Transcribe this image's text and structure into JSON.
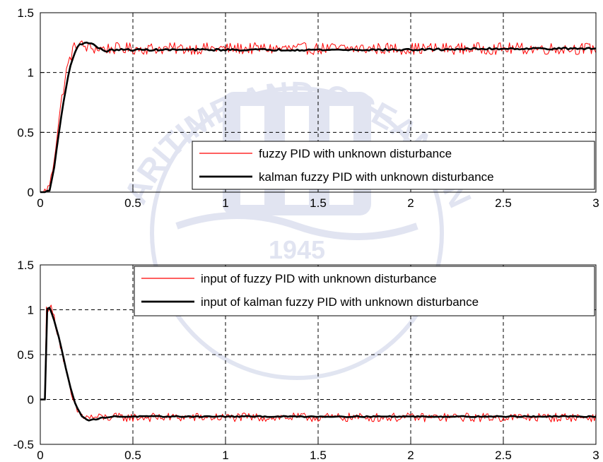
{
  "colors": {
    "fuzzy": "#ff0000",
    "kalman": "#000000",
    "grid": "#000000",
    "watermark": "#c9cfe6"
  },
  "watermark": {
    "arc_text": "KOREA MARITIME AND OCEAN UNIVERSITY",
    "year": "1945"
  },
  "chart_data": [
    {
      "type": "line",
      "title": "",
      "xlabel": "",
      "ylabel": "",
      "xlim": [
        0,
        3
      ],
      "ylim": [
        0,
        1.5
      ],
      "xticks": [
        0,
        0.5,
        1,
        1.5,
        2,
        2.5,
        3
      ],
      "yticks": [
        0,
        0.5,
        1,
        1.5
      ],
      "xtick_labels": [
        "0",
        "0.5",
        "1",
        "1.5",
        "2",
        "2.5",
        "3"
      ],
      "ytick_labels": [
        "0",
        "0.5",
        "1",
        "1.5"
      ],
      "grid": true,
      "legend_position": "bottom-right",
      "series": [
        {
          "name": "fuzzy PID with unknown disturbance",
          "color": "#ff0000",
          "style": "noisy",
          "x": [
            0,
            0.02,
            0.04,
            0.06,
            0.08,
            0.1,
            0.12,
            0.14,
            0.16,
            0.18,
            0.2,
            0.22,
            0.25,
            0.3,
            0.4,
            0.6,
            1.0,
            1.5,
            2.0,
            2.5,
            3.0
          ],
          "values": [
            0,
            0,
            0.02,
            0.12,
            0.35,
            0.6,
            0.82,
            1.0,
            1.12,
            1.2,
            1.24,
            1.23,
            1.21,
            1.2,
            1.2,
            1.2,
            1.2,
            1.2,
            1.2,
            1.2,
            1.2
          ],
          "noise_amplitude": 0.05
        },
        {
          "name": "kalman fuzzy PID with unknown disturbance",
          "color": "#000000",
          "style": "smooth",
          "x": [
            0,
            0.03,
            0.05,
            0.07,
            0.09,
            0.11,
            0.13,
            0.15,
            0.17,
            0.19,
            0.21,
            0.24,
            0.27,
            0.3,
            0.33,
            0.36,
            0.4,
            0.5,
            1.0,
            1.5,
            2.0,
            2.5,
            3.0
          ],
          "values": [
            0,
            0,
            0.02,
            0.15,
            0.38,
            0.6,
            0.8,
            0.97,
            1.1,
            1.18,
            1.23,
            1.25,
            1.25,
            1.22,
            1.19,
            1.18,
            1.19,
            1.19,
            1.19,
            1.19,
            1.19,
            1.2,
            1.2
          ],
          "noise_amplitude": 0.008
        }
      ]
    },
    {
      "type": "line",
      "title": "",
      "xlabel": "",
      "ylabel": "",
      "xlim": [
        0,
        3
      ],
      "ylim": [
        -0.5,
        1.5
      ],
      "xticks": [
        0,
        0.5,
        1,
        1.5,
        2,
        2.5,
        3
      ],
      "yticks": [
        -0.5,
        0,
        0.5,
        1,
        1.5
      ],
      "xtick_labels": [
        "0",
        "0.5",
        "1",
        "1.5",
        "2",
        "2.5",
        "3"
      ],
      "ytick_labels": [
        "-0.5",
        "0",
        "0.5",
        "1",
        "1.5"
      ],
      "grid": true,
      "legend_position": "top-right",
      "series": [
        {
          "name": "input of fuzzy PID with unknown disturbance",
          "color": "#ff0000",
          "style": "noisy",
          "x": [
            0,
            0.029,
            0.031,
            0.05,
            0.07,
            0.1,
            0.13,
            0.16,
            0.19,
            0.22,
            0.25,
            0.3,
            0.4,
            0.6,
            1.0,
            1.5,
            2.0,
            2.5,
            3.0
          ],
          "values": [
            0,
            0,
            1.0,
            1.05,
            0.95,
            0.7,
            0.4,
            0.1,
            -0.1,
            -0.18,
            -0.2,
            -0.2,
            -0.2,
            -0.2,
            -0.2,
            -0.2,
            -0.2,
            -0.2,
            -0.2
          ],
          "noise_amplitude": 0.05
        },
        {
          "name": "input of kalman fuzzy PID with unknown disturbance",
          "color": "#000000",
          "style": "smooth",
          "x": [
            0,
            0.029,
            0.031,
            0.05,
            0.07,
            0.1,
            0.13,
            0.16,
            0.19,
            0.22,
            0.26,
            0.3,
            0.35,
            0.4,
            0.6,
            1.0,
            1.5,
            2.0,
            2.5,
            3.0
          ],
          "values": [
            0,
            0,
            1.0,
            1.02,
            0.92,
            0.7,
            0.42,
            0.15,
            -0.05,
            -0.18,
            -0.23,
            -0.22,
            -0.2,
            -0.19,
            -0.19,
            -0.19,
            -0.19,
            -0.19,
            -0.19,
            -0.19
          ],
          "noise_amplitude": 0.006
        }
      ]
    }
  ]
}
